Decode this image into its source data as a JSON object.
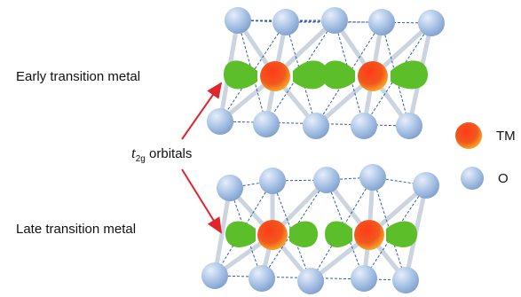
{
  "labels": {
    "early": "Early transition metal",
    "late": "Late transition metal",
    "t2g_symbol": "t",
    "t2g_subscript": "2g",
    "t2g_word": "orbitals"
  },
  "legend": {
    "tm": "TM",
    "o": "O"
  },
  "colors": {
    "tm_center": "#ff2a1a",
    "tm_edge": "#f6a51f",
    "oxygen": "#a8c3e6",
    "orbital": "#5cbf2a",
    "arrow": "#e2242b",
    "bond": "#c9d3df",
    "dashed_bond": "#2f5fa8"
  }
}
